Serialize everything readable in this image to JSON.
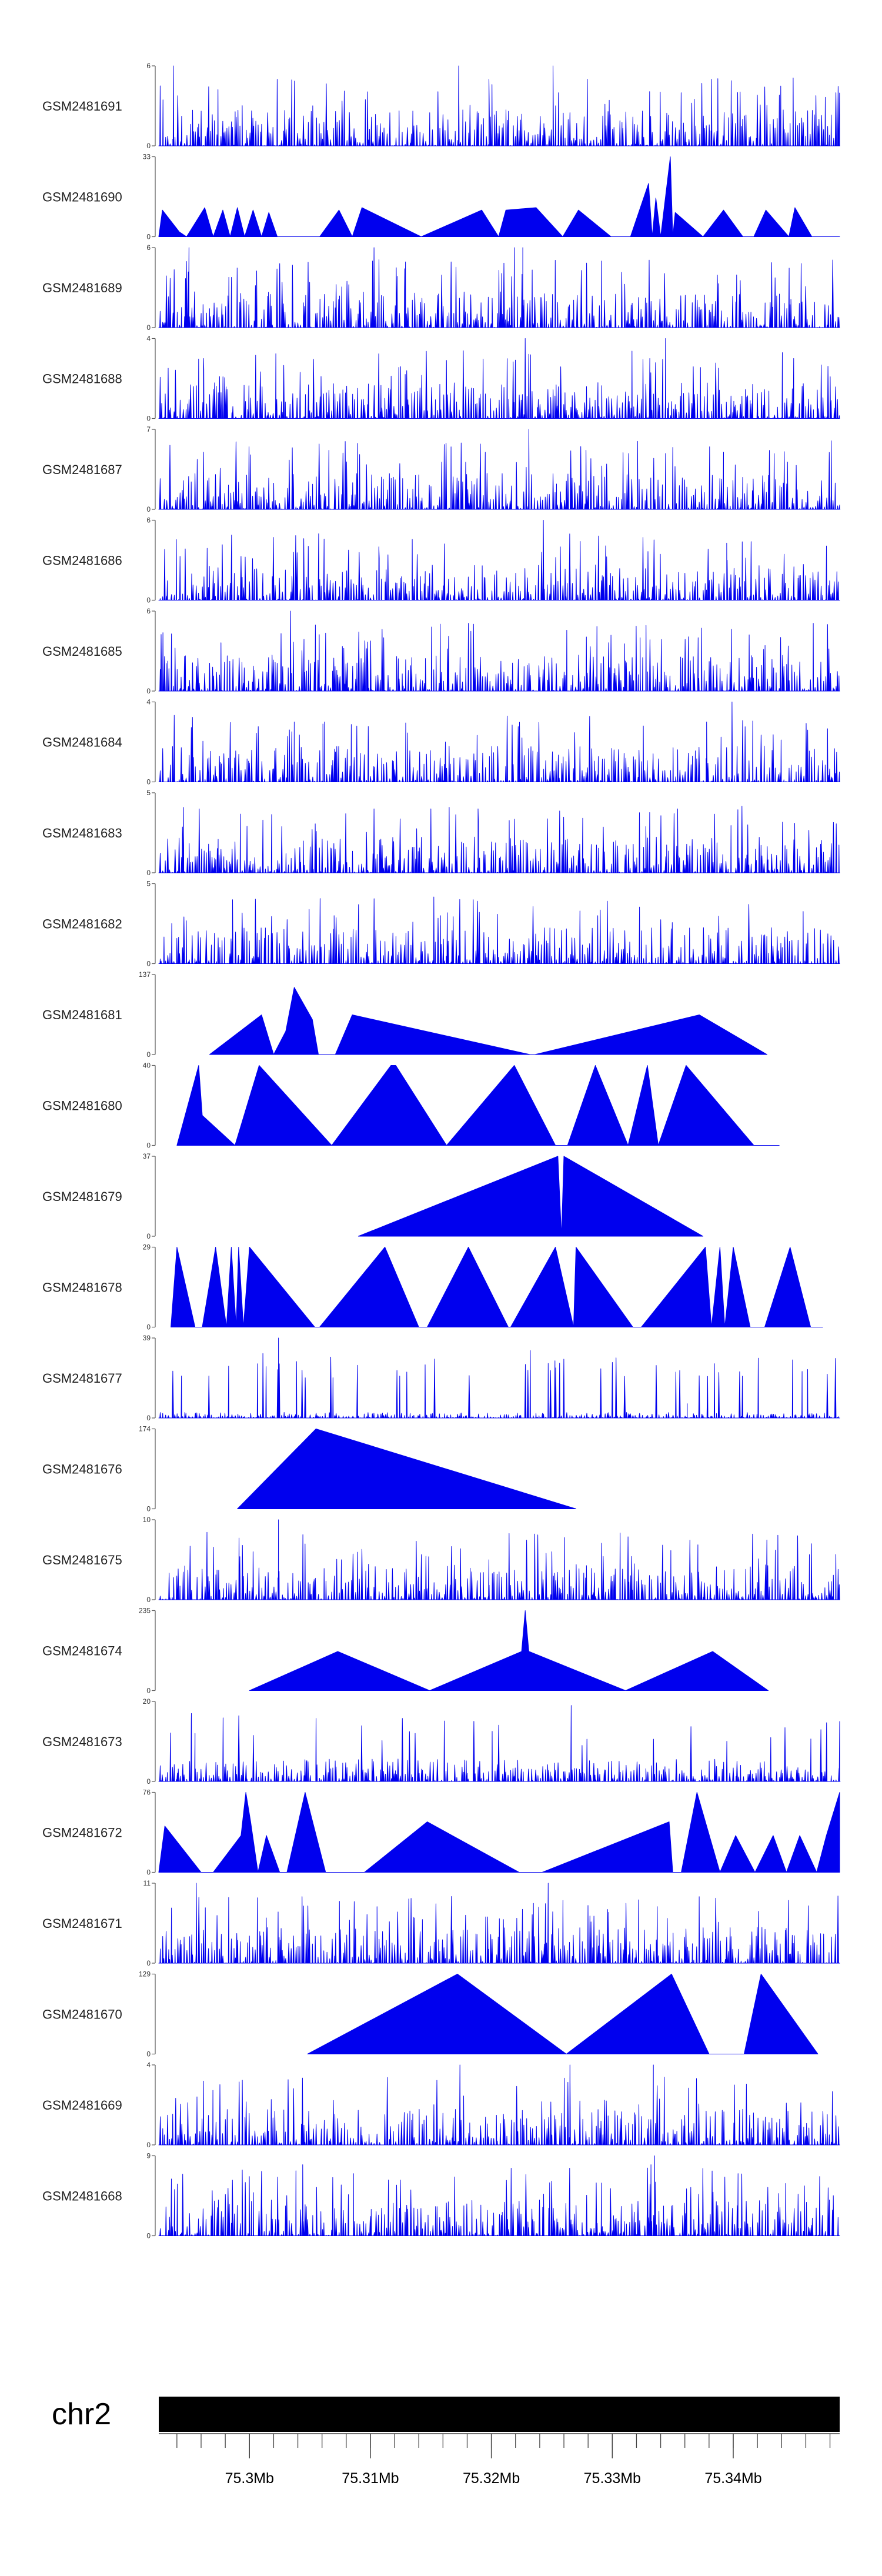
{
  "chart_data": {
    "type": "area",
    "title": "",
    "chromosome": "chr2",
    "region_start_mb": 75.2925,
    "region_end_mb": 75.3488,
    "position_ticks": [
      {
        "value": 75.3,
        "label": "75.3Mb"
      },
      {
        "value": 75.31,
        "label": "75.31Mb"
      },
      {
        "value": 75.32,
        "label": "75.32Mb"
      },
      {
        "value": 75.33,
        "label": "75.33Mb"
      },
      {
        "value": 75.34,
        "label": "75.34Mb"
      }
    ],
    "fill_color": "#0000ee",
    "tracks": [
      {
        "name": "GSM2481691",
        "ymax": 6,
        "style": "dense",
        "seed": 11,
        "peaks": [
          [
            75.2937,
            6
          ],
          [
            75.3173,
            6
          ],
          [
            75.3198,
            5
          ],
          [
            75.3251,
            6
          ],
          [
            75.3382,
            5
          ]
        ]
      },
      {
        "name": "GSM2481690",
        "ymax": 33,
        "style": "sparse",
        "points": [
          [
            75.2925,
            0
          ],
          [
            75.2928,
            11
          ],
          [
            75.2942,
            2
          ],
          [
            75.2948,
            0
          ],
          [
            75.2963,
            12
          ],
          [
            75.297,
            0
          ],
          [
            75.2978,
            11
          ],
          [
            75.2984,
            0
          ],
          [
            75.299,
            12
          ],
          [
            75.2996,
            0
          ],
          [
            75.3003,
            11
          ],
          [
            75.301,
            0
          ],
          [
            75.3016,
            10
          ],
          [
            75.3023,
            0
          ],
          [
            75.3058,
            0
          ],
          [
            75.3074,
            11
          ],
          [
            75.3085,
            0
          ],
          [
            75.3093,
            12
          ],
          [
            75.3142,
            0
          ],
          [
            75.3192,
            11
          ],
          [
            75.3206,
            0
          ],
          [
            75.3212,
            11
          ],
          [
            75.3237,
            12
          ],
          [
            75.3259,
            0
          ],
          [
            75.3272,
            11
          ],
          [
            75.3299,
            0
          ],
          [
            75.3315,
            0
          ],
          [
            75.333,
            22
          ],
          [
            75.3333,
            0
          ],
          [
            75.3336,
            16
          ],
          [
            75.334,
            0
          ],
          [
            75.3348,
            33
          ],
          [
            75.335,
            0
          ],
          [
            75.3352,
            10
          ],
          [
            75.3375,
            0
          ],
          [
            75.3392,
            11
          ],
          [
            75.3408,
            0
          ],
          [
            75.3417,
            0
          ],
          [
            75.3427,
            11
          ],
          [
            75.3446,
            0
          ],
          [
            75.3451,
            12
          ],
          [
            75.3465,
            0
          ],
          [
            75.3488,
            0
          ]
        ]
      },
      {
        "name": "GSM2481689",
        "ymax": 6,
        "style": "dense",
        "seed": 23,
        "peaks": [
          [
            75.295,
            6
          ],
          [
            75.3103,
            6
          ],
          [
            75.3219,
            6
          ],
          [
            75.3226,
            6
          ],
          [
            75.3291,
            5
          ]
        ]
      },
      {
        "name": "GSM2481688",
        "ymax": 4,
        "style": "dense",
        "seed": 37,
        "peaks": [
          [
            75.2962,
            3
          ],
          [
            75.3228,
            4
          ],
          [
            75.3331,
            3
          ],
          [
            75.3344,
            4
          ],
          [
            75.345,
            3
          ]
        ]
      },
      {
        "name": "GSM2481687",
        "ymax": 7,
        "style": "dense",
        "seed": 41,
        "peaks": [
          [
            75.2962,
            5
          ],
          [
            75.3195,
            5
          ],
          [
            75.3231,
            7
          ],
          [
            75.3392,
            5
          ],
          [
            75.3481,
            6
          ]
        ]
      },
      {
        "name": "GSM2481686",
        "ymax": 6,
        "style": "dense",
        "seed": 53,
        "peaks": [
          [
            75.3107,
            4
          ],
          [
            75.3243,
            6
          ],
          [
            75.3257,
            4
          ],
          [
            75.3395,
            3
          ]
        ]
      },
      {
        "name": "GSM2481685",
        "ymax": 6,
        "style": "dense",
        "seed": 67,
        "peaks": [
          [
            75.3034,
            6
          ],
          [
            75.3111,
            4
          ],
          [
            75.3323,
            4
          ],
          [
            75.3371,
            4
          ],
          [
            75.3478,
            5
          ]
        ]
      },
      {
        "name": "GSM2481684",
        "ymax": 4,
        "style": "dense",
        "seed": 71,
        "peaks": [
          [
            75.3037,
            3
          ],
          [
            75.3062,
            3
          ],
          [
            75.3162,
            2
          ],
          [
            75.3378,
            3
          ],
          [
            75.3399,
            4
          ]
        ]
      },
      {
        "name": "GSM2481683",
        "ymax": 5,
        "style": "dense",
        "seed": 83,
        "peaks": [
          [
            75.3103,
            4
          ],
          [
            75.315,
            4
          ],
          [
            75.3189,
            4
          ],
          [
            75.3354,
            4
          ],
          [
            75.3412,
            3
          ]
        ]
      },
      {
        "name": "GSM2481682",
        "ymax": 5,
        "style": "dense",
        "seed": 97,
        "peaks": [
          [
            75.2986,
            4
          ],
          [
            75.307,
            3
          ],
          [
            75.3158,
            3
          ],
          [
            75.3185,
            4
          ],
          [
            75.3288,
            3
          ]
        ]
      },
      {
        "name": "GSM2481681",
        "ymax": 137,
        "style": "sparse",
        "points": [
          [
            75.2967,
            0
          ],
          [
            75.301,
            68
          ],
          [
            75.302,
            0
          ],
          [
            75.303,
            40
          ],
          [
            75.3037,
            115
          ],
          [
            75.3052,
            60
          ],
          [
            75.3057,
            0
          ],
          [
            75.3071,
            0
          ],
          [
            75.3085,
            68
          ],
          [
            75.3232,
            0
          ],
          [
            75.3236,
            0
          ],
          [
            75.3372,
            68
          ],
          [
            75.3428,
            0
          ]
        ]
      },
      {
        "name": "GSM2481680",
        "ymax": 40,
        "style": "sparse",
        "points": [
          [
            75.294,
            0
          ],
          [
            75.2958,
            40
          ],
          [
            75.2961,
            15
          ],
          [
            75.2988,
            0
          ],
          [
            75.3008,
            40
          ],
          [
            75.3068,
            0
          ],
          [
            75.3117,
            40
          ],
          [
            75.3121,
            40
          ],
          [
            75.3163,
            0
          ],
          [
            75.3219,
            40
          ],
          [
            75.3253,
            0
          ],
          [
            75.3263,
            0
          ],
          [
            75.3286,
            40
          ],
          [
            75.3313,
            0
          ],
          [
            75.3329,
            40
          ],
          [
            75.3338,
            0
          ],
          [
            75.3361,
            40
          ],
          [
            75.3417,
            0
          ],
          [
            75.3438,
            0
          ]
        ]
      },
      {
        "name": "GSM2481679",
        "ymax": 37,
        "style": "sparse",
        "points": [
          [
            75.309,
            0
          ],
          [
            75.3255,
            37
          ],
          [
            75.3258,
            0
          ],
          [
            75.326,
            37
          ],
          [
            75.3375,
            0
          ]
        ]
      },
      {
        "name": "GSM2481678",
        "ymax": 29,
        "style": "sparse",
        "points": [
          [
            75.2935,
            0
          ],
          [
            75.294,
            29
          ],
          [
            75.2955,
            0
          ],
          [
            75.2961,
            0
          ],
          [
            75.2972,
            29
          ],
          [
            75.2981,
            0
          ],
          [
            75.2985,
            29
          ],
          [
            75.2989,
            0
          ],
          [
            75.2991,
            29
          ],
          [
            75.2995,
            0
          ],
          [
            75.3,
            29
          ],
          [
            75.3054,
            0
          ],
          [
            75.3058,
            0
          ],
          [
            75.3112,
            29
          ],
          [
            75.314,
            0
          ],
          [
            75.3147,
            0
          ],
          [
            75.3181,
            29
          ],
          [
            75.3214,
            0
          ],
          [
            75.3216,
            0
          ],
          [
            75.3253,
            29
          ],
          [
            75.3268,
            0
          ],
          [
            75.327,
            29
          ],
          [
            75.3317,
            0
          ],
          [
            75.3324,
            0
          ],
          [
            75.3377,
            29
          ],
          [
            75.3382,
            0
          ],
          [
            75.3389,
            29
          ],
          [
            75.3393,
            0
          ],
          [
            75.34,
            29
          ],
          [
            75.3414,
            0
          ],
          [
            75.3426,
            0
          ],
          [
            75.3447,
            29
          ],
          [
            75.3464,
            0
          ],
          [
            75.3474,
            0
          ]
        ]
      },
      {
        "name": "GSM2481677",
        "ymax": 39,
        "style": "dense",
        "seed": 101,
        "scale": 0.07,
        "peaks": [
          [
            75.3024,
            39
          ],
          [
            75.3362,
            7
          ]
        ]
      },
      {
        "name": "GSM2481676",
        "ymax": 174,
        "style": "sparse",
        "points": [
          [
            75.299,
            0
          ],
          [
            75.3055,
            174
          ],
          [
            75.327,
            0
          ]
        ]
      },
      {
        "name": "GSM2481675",
        "ymax": 10,
        "style": "dense",
        "seed": 113,
        "peaks": [
          [
            75.3003,
            6
          ],
          [
            75.3024,
            10
          ],
          [
            75.3076,
            5
          ],
          [
            75.3198,
            5
          ],
          [
            75.325,
            6
          ]
        ]
      },
      {
        "name": "GSM2481674",
        "ymax": 235,
        "style": "sparse",
        "points": [
          [
            75.3,
            0
          ],
          [
            75.3073,
            115
          ],
          [
            75.3149,
            0
          ],
          [
            75.3225,
            115
          ],
          [
            75.3228,
            235
          ],
          [
            75.3231,
            115
          ],
          [
            75.3311,
            0
          ],
          [
            75.3383,
            115
          ],
          [
            75.3429,
            0
          ]
        ]
      },
      {
        "name": "GSM2481673",
        "ymax": 20,
        "style": "dense",
        "seed": 127,
        "scale": 0.28,
        "peaks": [
          [
            75.2952,
            17
          ],
          [
            75.2955,
            12
          ],
          [
            75.3047,
            5
          ],
          [
            75.3266,
            19
          ],
          [
            75.3275,
            9
          ],
          [
            75.3488,
            15
          ]
        ]
      },
      {
        "name": "GSM2481672",
        "ymax": 76,
        "style": "sparse",
        "points": [
          [
            75.2925,
            0
          ],
          [
            75.293,
            44
          ],
          [
            75.296,
            0
          ],
          [
            75.297,
            0
          ],
          [
            75.2993,
            35
          ],
          [
            75.2997,
            76
          ],
          [
            75.3001,
            48
          ],
          [
            75.3007,
            0
          ],
          [
            75.3014,
            35
          ],
          [
            75.3025,
            0
          ],
          [
            75.3031,
            0
          ],
          [
            75.3046,
            76
          ],
          [
            75.3063,
            0
          ],
          [
            75.3095,
            0
          ],
          [
            75.3147,
            48
          ],
          [
            75.3223,
            0
          ],
          [
            75.3242,
            0
          ],
          [
            75.3347,
            48
          ],
          [
            75.335,
            0
          ],
          [
            75.3357,
            0
          ],
          [
            75.337,
            76
          ],
          [
            75.3389,
            0
          ],
          [
            75.3402,
            35
          ],
          [
            75.3418,
            0
          ],
          [
            75.3433,
            35
          ],
          [
            75.3444,
            0
          ],
          [
            75.3455,
            35
          ],
          [
            75.3469,
            0
          ],
          [
            75.3477,
            35
          ],
          [
            75.3488,
            76
          ],
          [
            75.3488,
            0
          ]
        ]
      },
      {
        "name": "GSM2481671",
        "ymax": 11,
        "style": "dense",
        "seed": 131,
        "peaks": [
          [
            75.2956,
            11
          ],
          [
            75.3143,
            6
          ],
          [
            75.321,
            6
          ],
          [
            75.3247,
            11
          ],
          [
            75.3297,
            7
          ]
        ]
      },
      {
        "name": "GSM2481670",
        "ymax": 129,
        "style": "sparse",
        "points": [
          [
            75.3048,
            0
          ],
          [
            75.3172,
            129
          ],
          [
            75.3262,
            0
          ],
          [
            75.3349,
            129
          ],
          [
            75.338,
            0
          ],
          [
            75.3409,
            0
          ],
          [
            75.3423,
            129
          ],
          [
            75.347,
            0
          ]
        ]
      },
      {
        "name": "GSM2481669",
        "ymax": 4,
        "style": "dense",
        "seed": 149,
        "peaks": [
          [
            75.3174,
            4
          ],
          [
            75.3265,
            4
          ],
          [
            75.3334,
            4
          ],
          [
            75.3401,
            3
          ]
        ]
      },
      {
        "name": "GSM2481668",
        "ymax": 9,
        "style": "dense",
        "seed": 157,
        "peaks": [
          [
            75.3044,
            8
          ],
          [
            75.3086,
            7
          ],
          [
            75.3335,
            9
          ],
          [
            75.3332,
            8
          ],
          [
            75.3404,
            7
          ]
        ]
      }
    ]
  }
}
